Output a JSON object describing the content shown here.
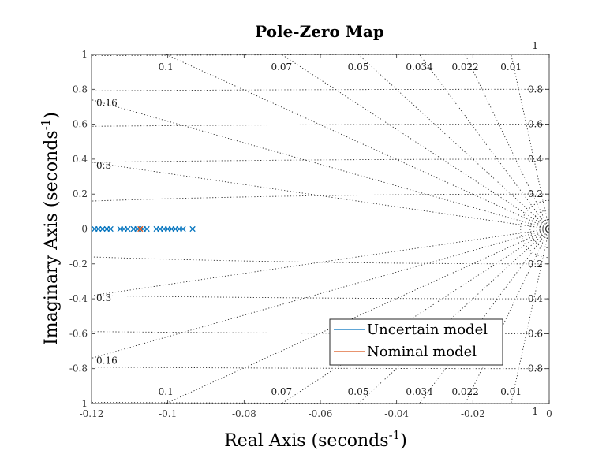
{
  "chart_data": {
    "type": "scatter",
    "title": "Pole-Zero Map",
    "xlabel": "Real Axis (seconds",
    "ylabel": "Imaginary Axis (seconds",
    "label_exponent": "-1",
    "xlim": [
      -0.12,
      0
    ],
    "ylim": [
      -1,
      1
    ],
    "x_ticks": [
      -0.12,
      -0.1,
      -0.08,
      -0.06,
      -0.04,
      -0.02,
      0
    ],
    "x_tick_labels": [
      "-0.12",
      "-0.1",
      "-0.08",
      "-0.06",
      "-0.04",
      "-0.02",
      "0"
    ],
    "y_ticks": [
      -1,
      -0.8,
      -0.6,
      -0.4,
      -0.2,
      0,
      0.2,
      0.4,
      0.6,
      0.8,
      1
    ],
    "y_tick_labels": [
      "-1",
      "-0.8",
      "-0.6",
      "-0.4",
      "-0.2",
      "0",
      "0.2",
      "0.4",
      "0.6",
      "0.8",
      "1"
    ],
    "grid": true,
    "damping_lines": [
      {
        "zeta": 0.01,
        "label": "0.01"
      },
      {
        "zeta": 0.022,
        "label": "0.022"
      },
      {
        "zeta": 0.034,
        "label": "0.034"
      },
      {
        "zeta": 0.05,
        "label": "0.05"
      },
      {
        "zeta": 0.07,
        "label": "0.07"
      },
      {
        "zeta": 0.1,
        "label": "0.1"
      },
      {
        "zeta": 0.16,
        "label": "0.16"
      },
      {
        "zeta": 0.3,
        "label": "0.3"
      }
    ],
    "frequency_labels": [
      "1",
      "0.8",
      "0.6",
      "0.4",
      "0.2",
      "0.2",
      "0.4",
      "0.6",
      "0.8",
      "1"
    ],
    "frequency_values": [
      1,
      0.8,
      0.6,
      0.4,
      0.2,
      -0.2,
      -0.4,
      -0.6,
      -0.8,
      -1
    ],
    "legend": {
      "placement": "lower-right",
      "entries": [
        "Uncertain model",
        "Nominal model"
      ]
    },
    "series": [
      {
        "name": "Uncertain model",
        "color": "#0072BD",
        "marker": "x",
        "points": [
          {
            "x": -0.1192,
            "y": 0
          },
          {
            "x": -0.1182,
            "y": 0
          },
          {
            "x": -0.1171,
            "y": 0
          },
          {
            "x": -0.116,
            "y": 0
          },
          {
            "x": -0.115,
            "y": 0
          },
          {
            "x": -0.1125,
            "y": 0
          },
          {
            "x": -0.1115,
            "y": 0
          },
          {
            "x": -0.1105,
            "y": 0
          },
          {
            "x": -0.109,
            "y": 0
          },
          {
            "x": -0.108,
            "y": 0
          },
          {
            "x": -0.1065,
            "y": 0
          },
          {
            "x": -0.1055,
            "y": 0
          },
          {
            "x": -0.103,
            "y": 0
          },
          {
            "x": -0.102,
            "y": 0
          },
          {
            "x": -0.101,
            "y": 0
          },
          {
            "x": -0.1,
            "y": 0
          },
          {
            "x": -0.099,
            "y": 0
          },
          {
            "x": -0.098,
            "y": 0
          },
          {
            "x": -0.097,
            "y": 0
          },
          {
            "x": -0.096,
            "y": 0
          },
          {
            "x": -0.0935,
            "y": 0
          }
        ]
      },
      {
        "name": "Nominal model",
        "color": "#D95319",
        "marker": "x",
        "points": [
          {
            "x": -0.1072,
            "y": 0
          }
        ]
      }
    ]
  }
}
